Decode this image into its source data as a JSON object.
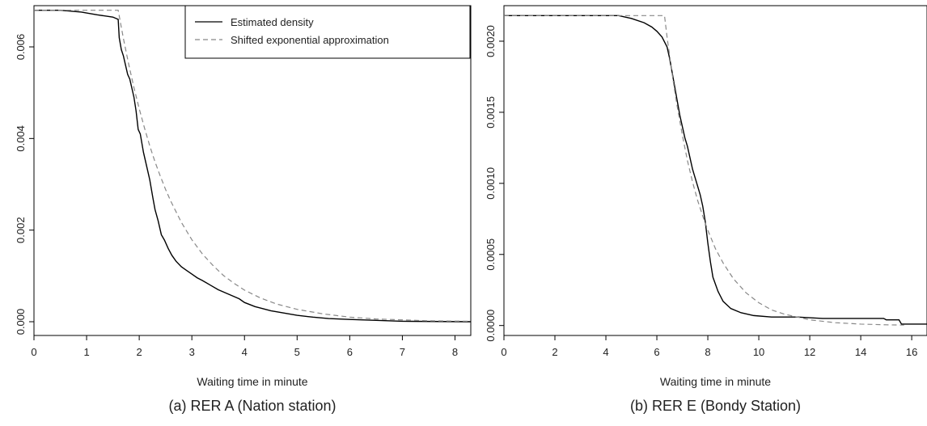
{
  "figure": {
    "panels": [
      {
        "caption": "(a)  RER A (Nation station)"
      },
      {
        "caption": "(b)  RER E (Bondy Station)"
      }
    ]
  },
  "chart_data": [
    {
      "type": "line",
      "title": "",
      "caption": "(a)  RER A (Nation station)",
      "xlabel": "Waiting time in minute",
      "ylabel": "",
      "xlim": [
        0,
        8.3
      ],
      "ylim": [
        -0.0003,
        0.0069
      ],
      "x_ticks": [
        0,
        1,
        2,
        3,
        4,
        5,
        6,
        7,
        8
      ],
      "x_tick_labels": [
        "0",
        "1",
        "2",
        "3",
        "4",
        "5",
        "6",
        "7",
        "8"
      ],
      "y_ticks": [
        0,
        0.002,
        0.004,
        0.006
      ],
      "y_tick_labels": [
        "0.000",
        "0.002",
        "0.004",
        "0.006"
      ],
      "grid": false,
      "legend": {
        "position": "top-right",
        "entries": [
          "Estimated density",
          "Shifted exponential approximation"
        ]
      },
      "series": [
        {
          "name": "Estimated density",
          "style": "solid",
          "color": "#000000",
          "x": [
            0,
            0.5,
            0.9,
            1.2,
            1.5,
            1.6,
            1.62,
            1.66,
            1.7,
            1.74,
            1.78,
            1.82,
            1.86,
            1.9,
            1.94,
            1.98,
            2.02,
            2.08,
            2.14,
            2.2,
            2.26,
            2.3,
            2.36,
            2.42,
            2.48,
            2.55,
            2.62,
            2.7,
            2.8,
            2.9,
            3.0,
            3.1,
            3.2,
            3.35,
            3.5,
            3.7,
            3.9,
            4.0,
            4.2,
            4.5,
            4.8,
            5.0,
            5.3,
            5.6,
            6.0,
            6.5,
            7.0,
            8.3
          ],
          "y": [
            0.0068,
            0.0068,
            0.00676,
            0.0067,
            0.00665,
            0.0066,
            0.0062,
            0.00594,
            0.0058,
            0.0056,
            0.0054,
            0.0053,
            0.0051,
            0.0049,
            0.0046,
            0.0042,
            0.0041,
            0.0037,
            0.0034,
            0.0031,
            0.0027,
            0.00245,
            0.0022,
            0.0019,
            0.00178,
            0.0016,
            0.00145,
            0.00132,
            0.0012,
            0.00112,
            0.00104,
            0.00096,
            0.0009,
            0.0008,
            0.0007,
            0.0006,
            0.0005,
            0.00042,
            0.00033,
            0.00024,
            0.00018,
            0.00014,
            0.0001,
            7e-05,
            5e-05,
            3e-05,
            1e-05,
            0.0
          ]
        },
        {
          "name": "Shifted exponential approximation",
          "style": "dashed",
          "color": "#888888",
          "x": [
            0,
            1.6,
            1.7,
            1.8,
            1.9,
            2.0,
            2.1,
            2.2,
            2.3,
            2.4,
            2.5,
            2.6,
            2.8,
            3.0,
            3.2,
            3.4,
            3.6,
            3.8,
            4.0,
            4.3,
            4.6,
            5.0,
            5.5,
            6.0,
            6.5,
            7.0,
            7.5,
            8.3
          ],
          "y": [
            0.0068,
            0.0068,
            0.00618,
            0.00562,
            0.00511,
            0.00465,
            0.00423,
            0.00384,
            0.00349,
            0.00318,
            0.00289,
            0.00263,
            0.00217,
            0.00179,
            0.00148,
            0.00123,
            0.00101,
            0.00084,
            0.00069,
            0.00052,
            0.00039,
            0.00027,
            0.00017,
            0.0001,
            6e-05,
            4e-05,
            2e-05,
            1e-05
          ]
        }
      ]
    },
    {
      "type": "line",
      "title": "",
      "caption": "(b)  RER E (Bondy Station)",
      "xlabel": "Waiting time in minute",
      "ylabel": "",
      "xlim": [
        0,
        16.6
      ],
      "ylim": [
        -7e-05,
        0.00225
      ],
      "x_ticks": [
        0,
        2,
        4,
        6,
        8,
        10,
        12,
        14,
        16
      ],
      "x_tick_labels": [
        "0",
        "2",
        "4",
        "6",
        "8",
        "10",
        "12",
        "14",
        "16"
      ],
      "y_ticks": [
        0,
        0.0005,
        0.001,
        0.0015,
        0.002
      ],
      "y_tick_labels": [
        "0.0000",
        "0.0005",
        "0.0010",
        "0.0015",
        "0.0020"
      ],
      "grid": false,
      "series": [
        {
          "name": "Estimated density",
          "style": "solid",
          "color": "#000000",
          "x": [
            0,
            4.5,
            5.0,
            5.5,
            5.8,
            6.0,
            6.2,
            6.4,
            6.5,
            6.6,
            6.7,
            6.8,
            6.9,
            7.0,
            7.1,
            7.2,
            7.3,
            7.4,
            7.5,
            7.6,
            7.7,
            7.8,
            7.9,
            8.0,
            8.1,
            8.2,
            8.4,
            8.6,
            8.9,
            9.3,
            9.8,
            10.5,
            11.5,
            12.5,
            13.5,
            14.9,
            15.0,
            15.5,
            15.6,
            16.6
          ],
          "y": [
            0.00218,
            0.00218,
            0.00216,
            0.00213,
            0.0021,
            0.00207,
            0.00203,
            0.00196,
            0.00188,
            0.00178,
            0.00168,
            0.00158,
            0.00148,
            0.0014,
            0.00132,
            0.00126,
            0.00118,
            0.0011,
            0.00104,
            0.00098,
            0.00092,
            0.00084,
            0.00073,
            0.00058,
            0.00045,
            0.00034,
            0.00024,
            0.00017,
            0.00012,
            9e-05,
            7e-05,
            6e-05,
            6e-05,
            5e-05,
            5e-05,
            5e-05,
            4e-05,
            4e-05,
            1e-05,
            1e-05
          ]
        },
        {
          "name": "Shifted exponential approximation",
          "style": "dashed",
          "color": "#888888",
          "x": [
            0,
            6.3,
            6.4,
            6.5,
            6.6,
            6.7,
            6.8,
            7.0,
            7.2,
            7.4,
            7.6,
            7.8,
            8.0,
            8.3,
            8.6,
            9.0,
            9.5,
            10.0,
            10.5,
            11.0,
            12.0,
            13.0,
            14.0,
            15.0,
            15.7
          ],
          "y": [
            0.00218,
            0.00218,
            0.00203,
            0.0019,
            0.00177,
            0.00165,
            0.00154,
            0.00134,
            0.00116,
            0.00101,
            0.00088,
            0.00077,
            0.00067,
            0.00054,
            0.00044,
            0.00033,
            0.00023,
            0.00016,
            0.00011,
            8e-05,
            4e-05,
            2e-05,
            1e-05,
            5e-06,
            3e-06
          ]
        }
      ]
    }
  ]
}
